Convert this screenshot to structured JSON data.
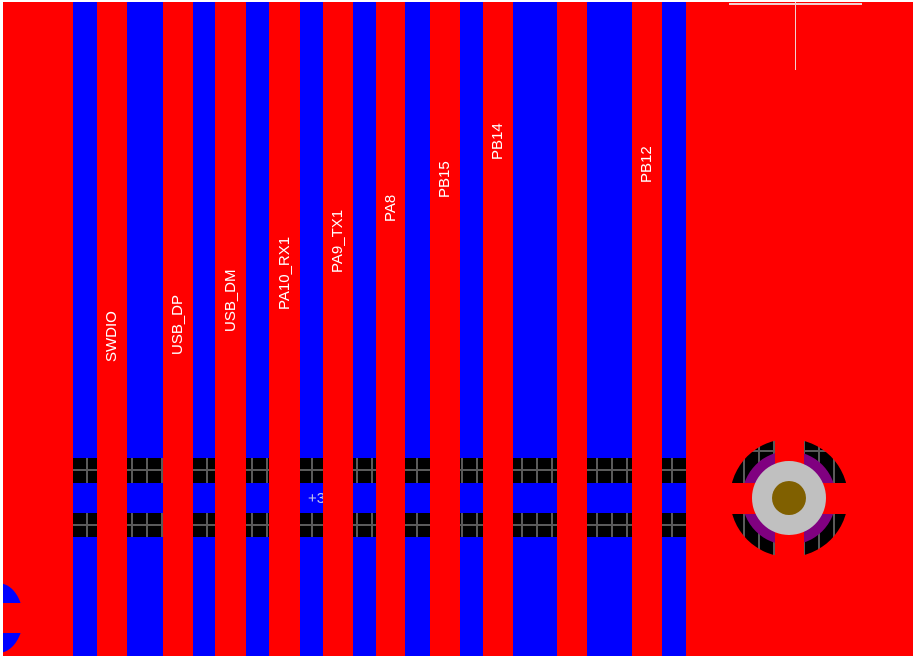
{
  "view": "pcb-layout-editor",
  "colors": {
    "top_layer": "#ff0000",
    "bottom_layer": "#0000ff",
    "keepout_grid": "#000000",
    "via_pad": "#c0c0c0",
    "via_hole": "#806000",
    "via_mask": "#800080",
    "label": "#ffffff"
  },
  "traces": [
    {
      "net": "SWDIO"
    },
    {
      "net": "USB_DP"
    },
    {
      "net": "USB_DM"
    },
    {
      "net": "PA10_RX1"
    },
    {
      "net": "PA9_TX1"
    },
    {
      "net": "PA8"
    },
    {
      "net": "PB15"
    },
    {
      "net": "PB14"
    },
    {
      "net": ""
    },
    {
      "net": "PB12"
    }
  ],
  "bottom_net_label": "+3.3V",
  "cursor": "crosshair"
}
